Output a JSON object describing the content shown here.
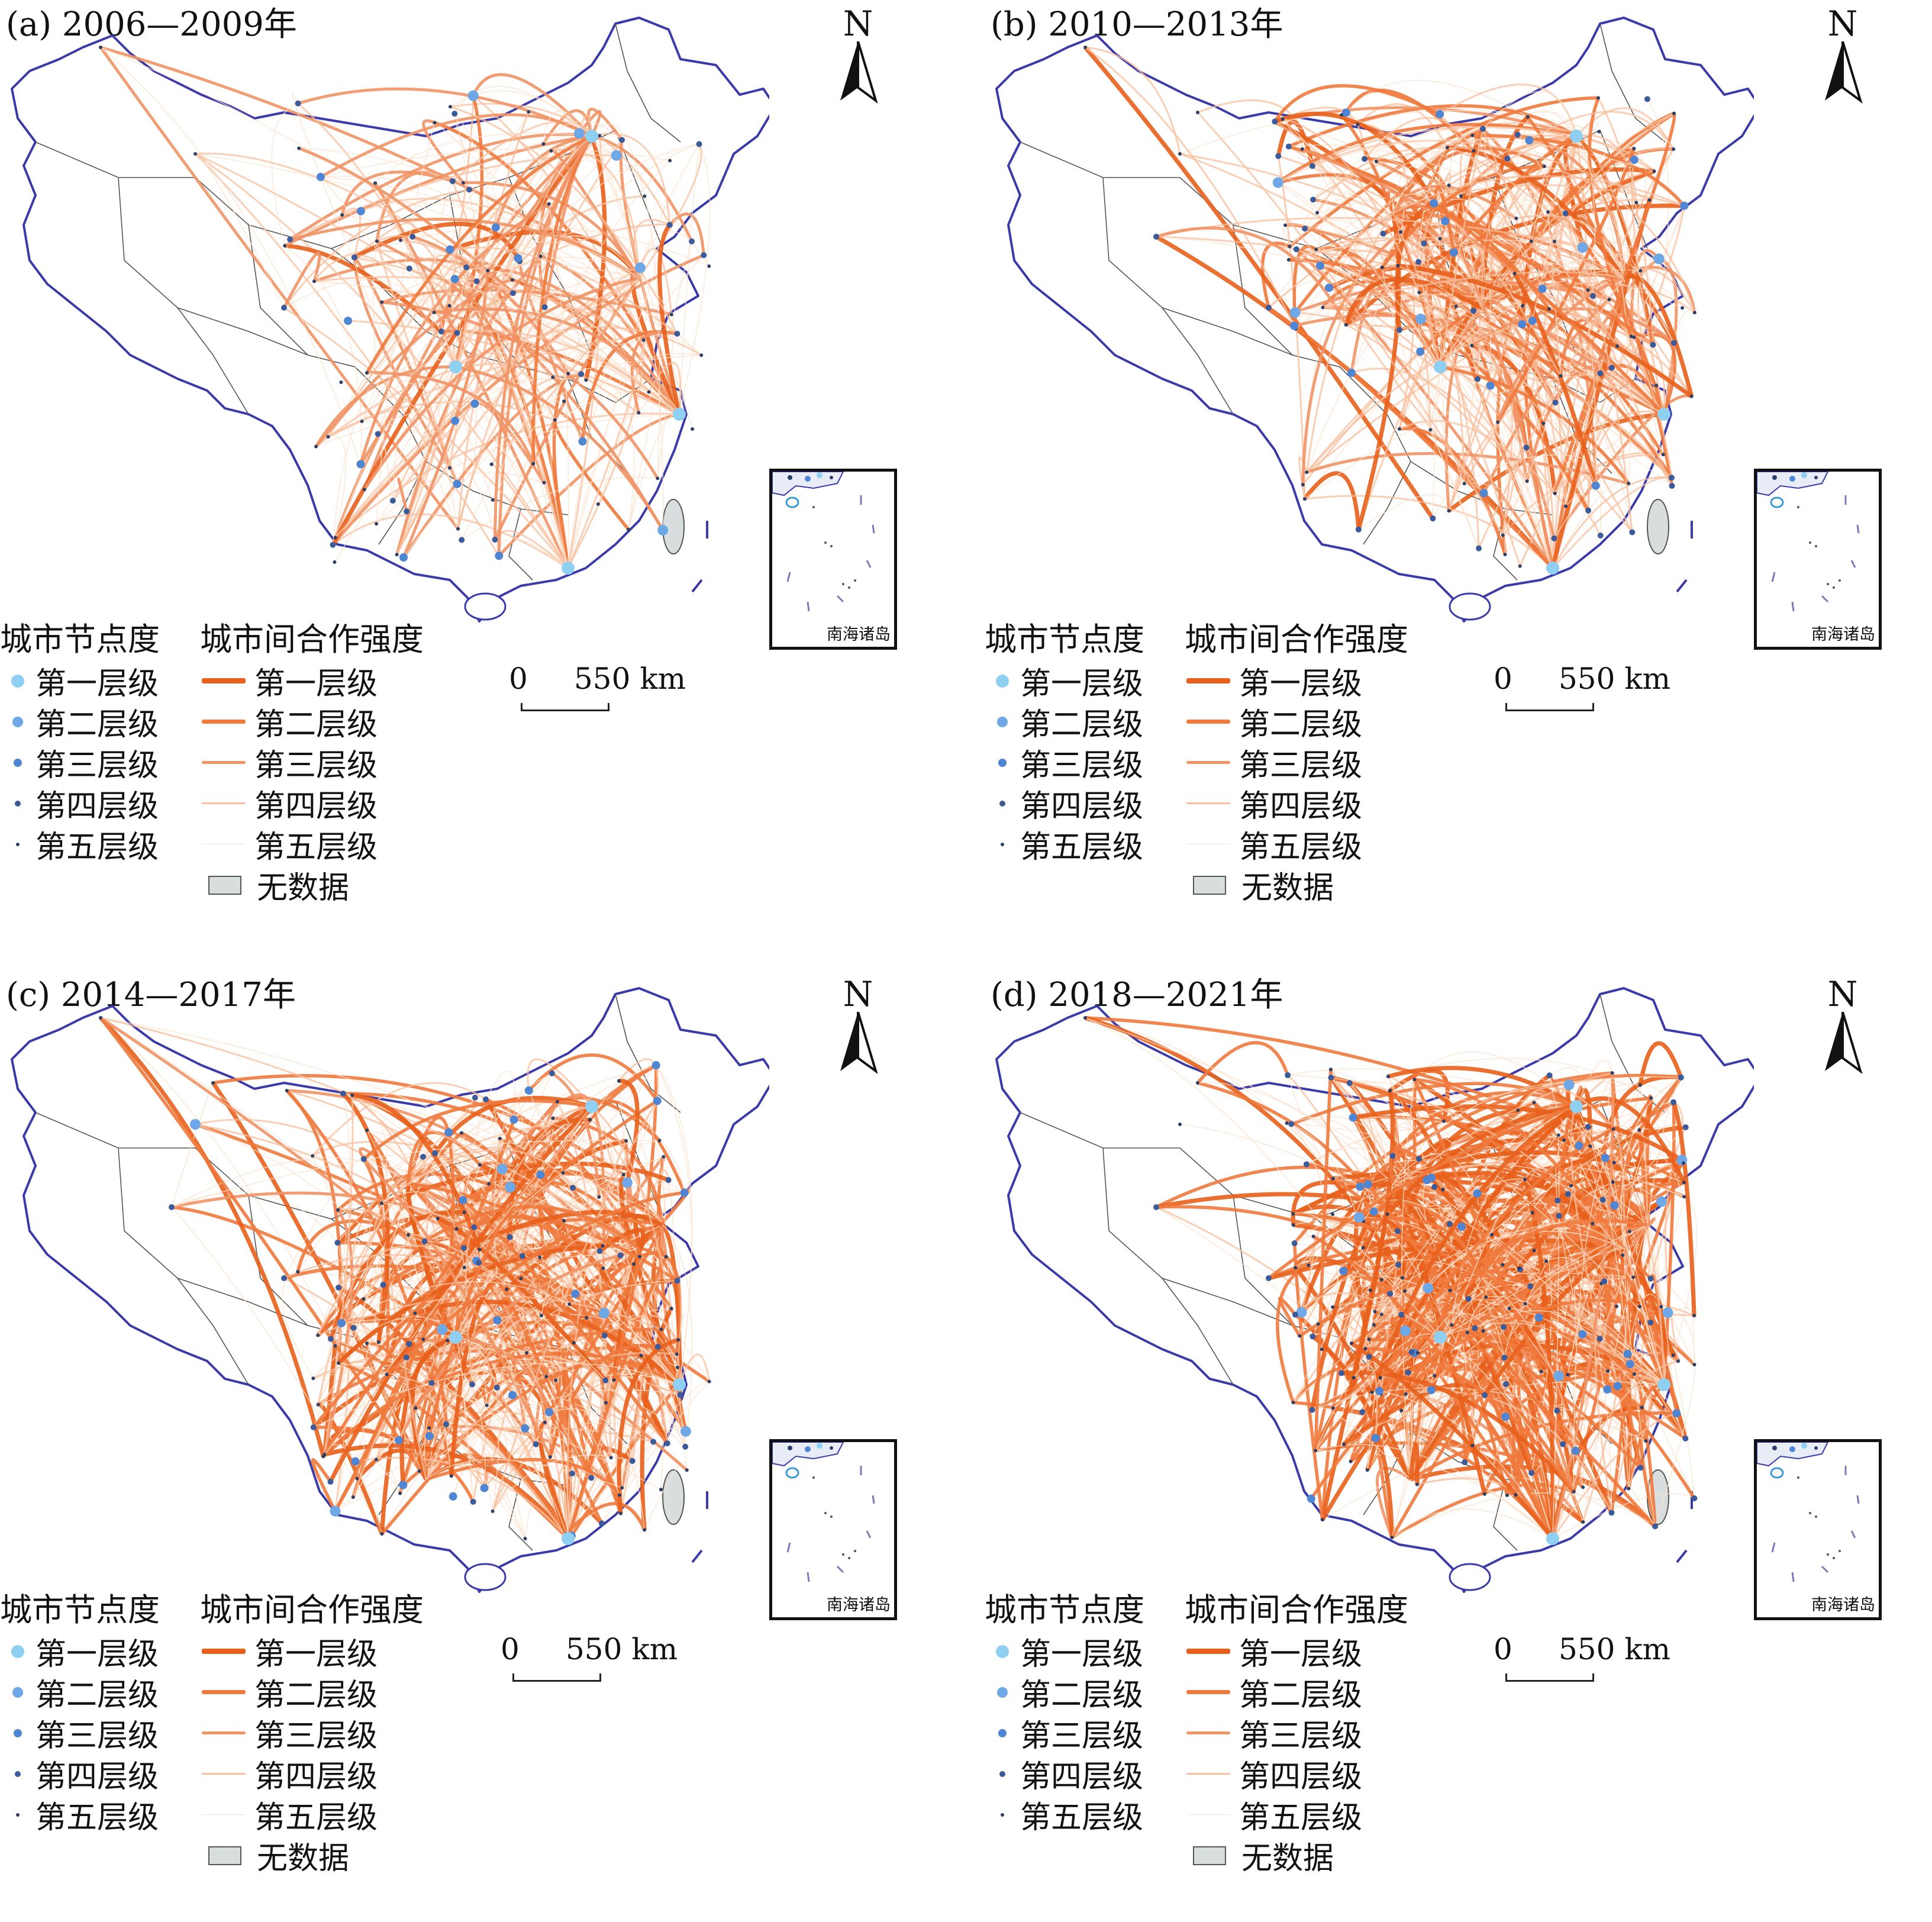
{
  "colors": {
    "link_tier1": "#e8601c",
    "link_tier2": "#ef7a3d",
    "link_tier3": "#f19466",
    "link_tier4": "#f7bf9d",
    "link_tier5": "#fbe1cc",
    "node_tier1": "#8fd0f2",
    "node_tier2": "#6fa8e6",
    "node_tier3": "#4f86d4",
    "node_tier4": "#3b5b9a",
    "node_tier5": "#2c3f66",
    "no_data": "#d8dedd",
    "boundary": "#555555"
  },
  "panels": [
    {
      "title": "(a) 2006—2009年",
      "north": "N",
      "scale": {
        "zero": "0",
        "label": "550 km"
      },
      "inset_label": "南海诸岛",
      "intensity": 1
    },
    {
      "title": "(b) 2010—2013年",
      "north": "N",
      "scale": {
        "zero": "0",
        "label": "550 km"
      },
      "inset_label": "南海诸岛",
      "intensity": 2
    },
    {
      "title": "(c) 2014—2017年",
      "north": "N",
      "scale": {
        "zero": "0",
        "label": "550 km"
      },
      "inset_label": "南海诸岛",
      "intensity": 3
    },
    {
      "title": "(d) 2018—2021年",
      "north": "N",
      "scale": {
        "zero": "0",
        "label": "550 km"
      },
      "inset_label": "南海诸岛",
      "intensity": 4
    }
  ],
  "legend": {
    "node_title": "城市节点度",
    "node_items": [
      "第一层级",
      "第二层级",
      "第三层级",
      "第四层级",
      "第五层级"
    ],
    "link_title": "城市间合作强度",
    "link_items": [
      "第一层级",
      "第二层级",
      "第三层级",
      "第四层级",
      "第五层级"
    ],
    "no_data": "无数据"
  }
}
